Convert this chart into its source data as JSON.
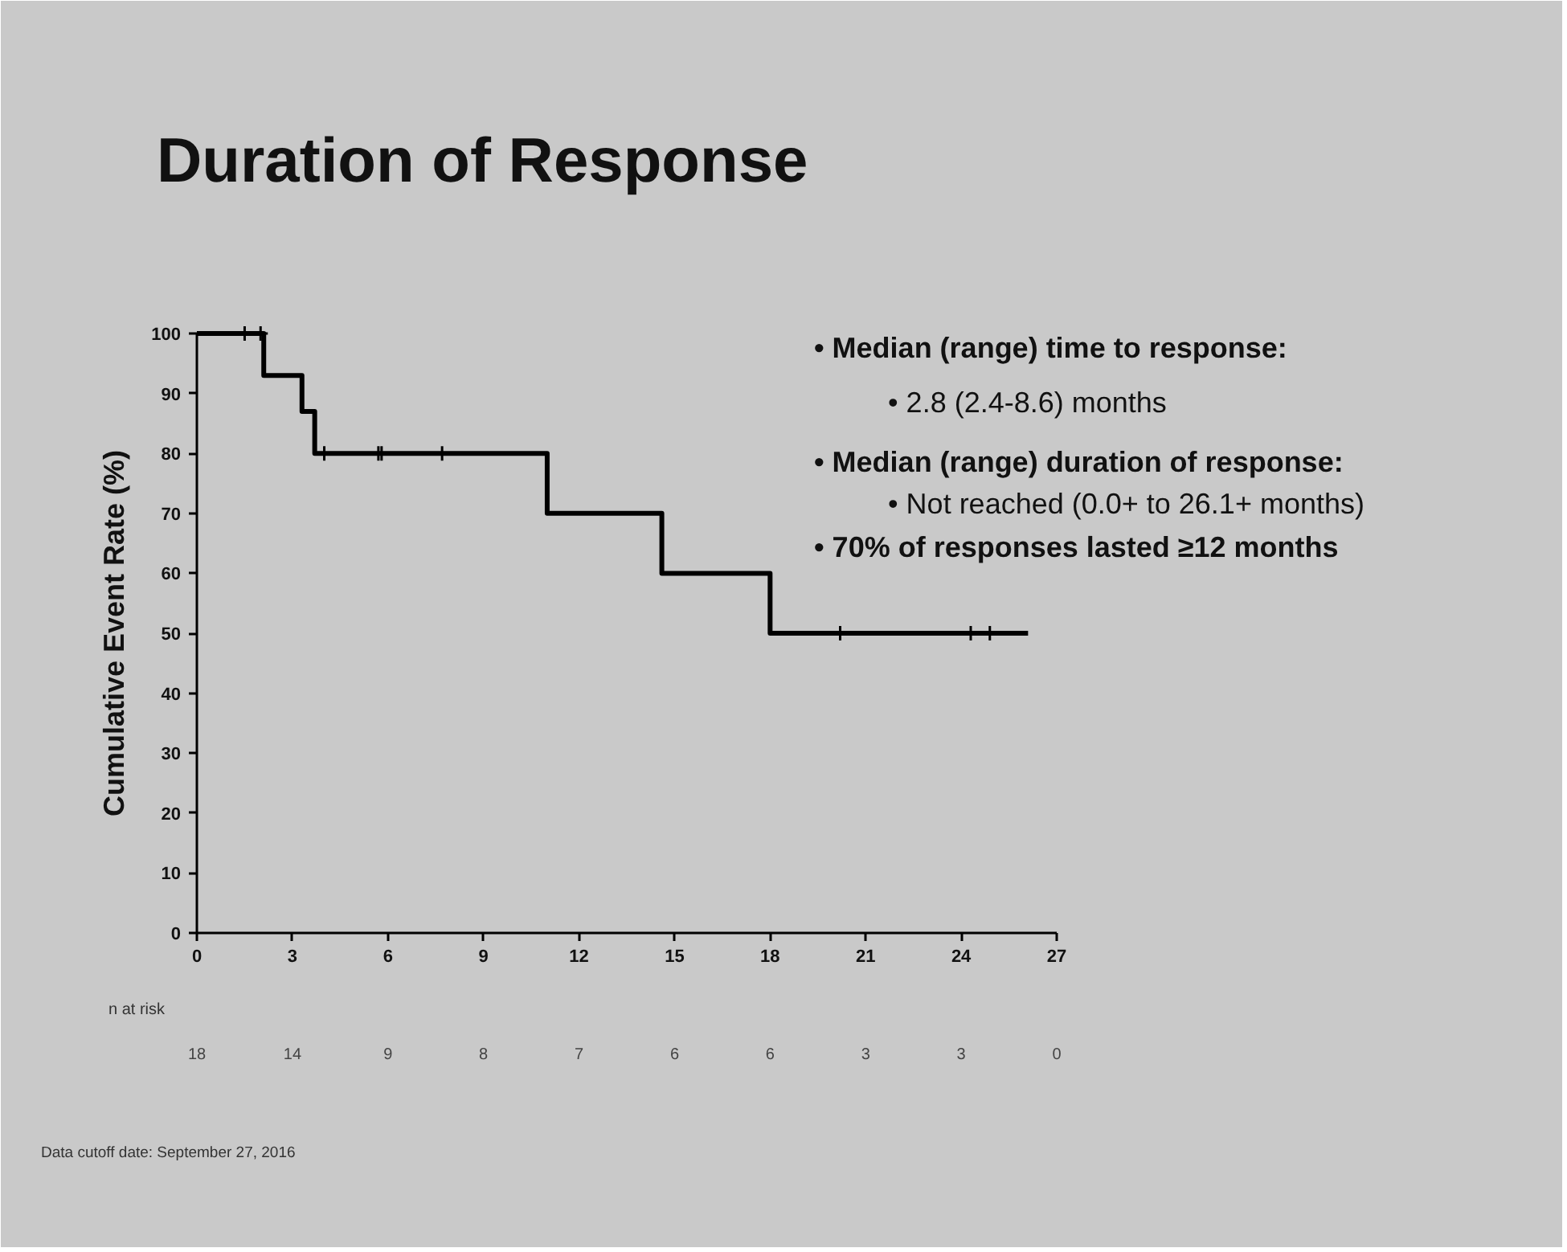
{
  "chart_data": {
    "type": "step",
    "title": "Duration of Response",
    "ylabel": "Cumulative Event Rate (%)",
    "x": [
      0,
      2.1,
      3.3,
      3.7,
      11.0,
      14.6,
      18.0,
      26.1
    ],
    "series": [
      {
        "color": "#000000",
        "values": [
          100,
          93,
          87,
          80,
          70,
          60,
          50,
          50
        ]
      },
      {
        "type": "scatter",
        "marker": "cross",
        "color": "#000000",
        "x": [
          1.5,
          2.0,
          4.0,
          5.7,
          5.8,
          7.7,
          20.2,
          24.3,
          24.9
        ],
        "values": [
          100,
          100,
          80,
          80,
          80,
          80,
          50,
          50,
          50
        ]
      }
    ],
    "xlim": [
      0,
      27
    ],
    "xticks": [
      0,
      3,
      6,
      9,
      12,
      15,
      18,
      21,
      24,
      27
    ],
    "ylim": [
      0,
      100
    ],
    "yticks": [
      0,
      10,
      20,
      30,
      40,
      50,
      60,
      70,
      80,
      90,
      100
    ],
    "grid": false,
    "annotations": [
      "• Median (range) time to response:",
      "• 2.8 (2.4-8.6) months",
      "• Median (range) duration of response:",
      "• Not reached (0.0+ to 26.1+ months)",
      "• 70% of responses lasted ≥12 months",
      "n at risk",
      "18",
      "14",
      "9",
      "8",
      "7",
      "6",
      "6",
      "3",
      "3",
      "0",
      "Data cutoff date: September 27, 2016"
    ]
  }
}
